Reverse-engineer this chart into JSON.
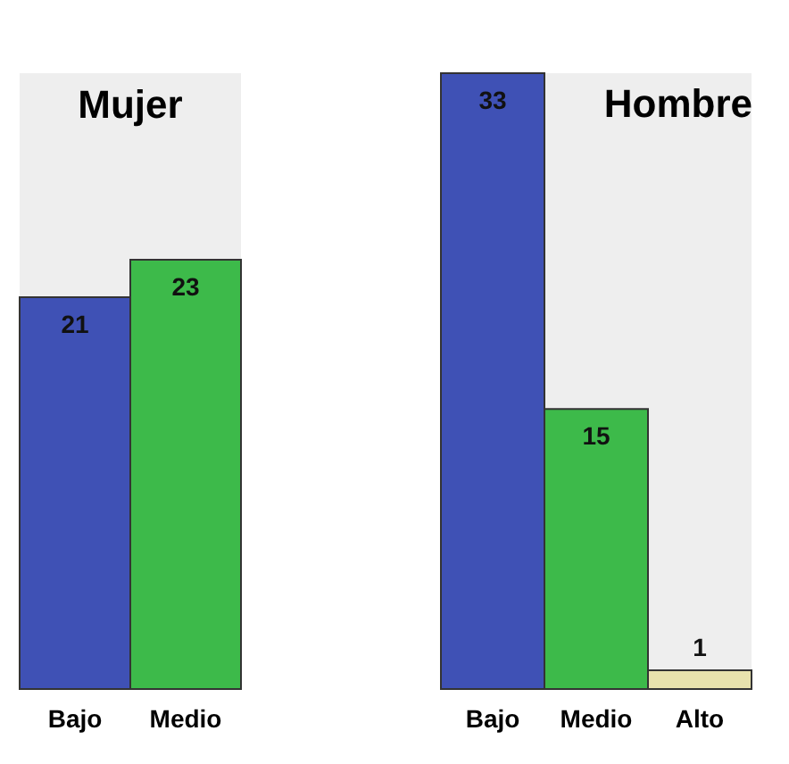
{
  "chart_data": [
    {
      "type": "bar",
      "title": "Mujer",
      "categories": [
        "Bajo",
        "Medio"
      ],
      "values": [
        21,
        23
      ],
      "colors": [
        "#3f51b5",
        "#3dba4a"
      ],
      "ylim": [
        0,
        33
      ],
      "data_labels": true,
      "tick_labels": "x"
    },
    {
      "type": "bar",
      "title": "Hombre",
      "categories": [
        "Bajo",
        "Medio",
        "Alto"
      ],
      "values": [
        33,
        15,
        1
      ],
      "colors": [
        "#3f51b5",
        "#3dba4a",
        "#e8e2ad"
      ],
      "ylim": [
        0,
        33
      ],
      "data_labels": true,
      "tick_labels": "x"
    }
  ]
}
